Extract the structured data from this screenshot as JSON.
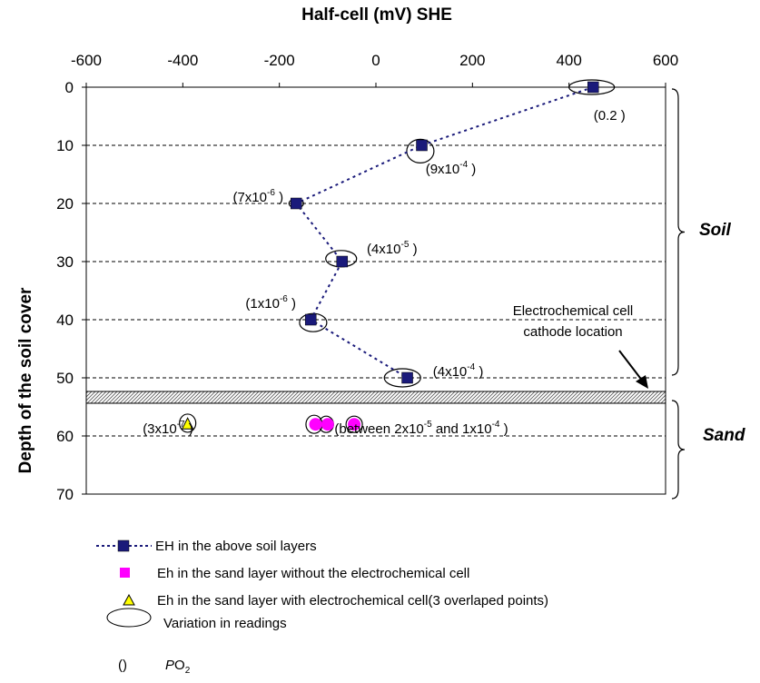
{
  "chart_data": {
    "type": "scatter",
    "title": "",
    "xlabel": "Half-cell (mV) SHE",
    "ylabel": "Depth of the soil cover",
    "xlim": [
      -600,
      600
    ],
    "ylim": [
      0,
      70
    ],
    "x_axis_position": "top",
    "y_axis_inverted": true,
    "grid": "horizontal dashed",
    "x_ticks": [
      "-600",
      "-400",
      "-200",
      "0",
      "200",
      "400",
      "600"
    ],
    "y_ticks": [
      "0",
      "10",
      "20",
      "30",
      "40",
      "50",
      "60",
      "70"
    ],
    "series": [
      {
        "name": "EH in the above soil layers",
        "marker": "square",
        "line": "dotted",
        "color": "#1a1a7a",
        "points": [
          {
            "x": 450,
            "y": 0,
            "po2": "(0.2 )"
          },
          {
            "x": 95,
            "y": 10,
            "po2": "(9x10-4)"
          },
          {
            "x": -165,
            "y": 20,
            "po2": "(7x10-6)"
          },
          {
            "x": -70,
            "y": 30,
            "po2": "(4x10-5)"
          },
          {
            "x": -135,
            "y": 40,
            "po2": "(1x10-6)"
          },
          {
            "x": 65,
            "y": 50,
            "po2": "(4x10-4)"
          }
        ]
      },
      {
        "name": "Eh in the sand layer without the electrochemical cell",
        "marker": "circle",
        "color": "#ff00ff",
        "points": [
          {
            "x": -125,
            "y": 58
          },
          {
            "x": -100,
            "y": 58
          },
          {
            "x": -45,
            "y": 58
          }
        ]
      },
      {
        "name": "Eh in the sand layer with electrochemical cell(3 overlaped points)",
        "marker": "triangle",
        "color": "#ffff00",
        "points": [
          {
            "x": -390,
            "y": 58
          }
        ]
      }
    ],
    "bands": [
      {
        "label": "Soil",
        "from": 0,
        "to": 50
      },
      {
        "label": "Sand",
        "from": 54,
        "to": 70
      }
    ],
    "cell_layer": {
      "from": 52,
      "to": 54
    },
    "annotations": {
      "cell_line1": "Electrochemical cell",
      "cell_line2": "cathode location",
      "sand_trig_po2": "(3x10-7)",
      "sand_magenta_po2": "(between 2x10-5 and 1x10-4)"
    },
    "legend": {
      "placement": "bottom",
      "items": [
        "EH in the above soil layers",
        "Eh in the sand layer without the electrochemical cell",
        "Eh in the sand layer with electrochemical cell(3 overlaped points)",
        "Variation in readings",
        "()",
        "PO2"
      ]
    }
  }
}
